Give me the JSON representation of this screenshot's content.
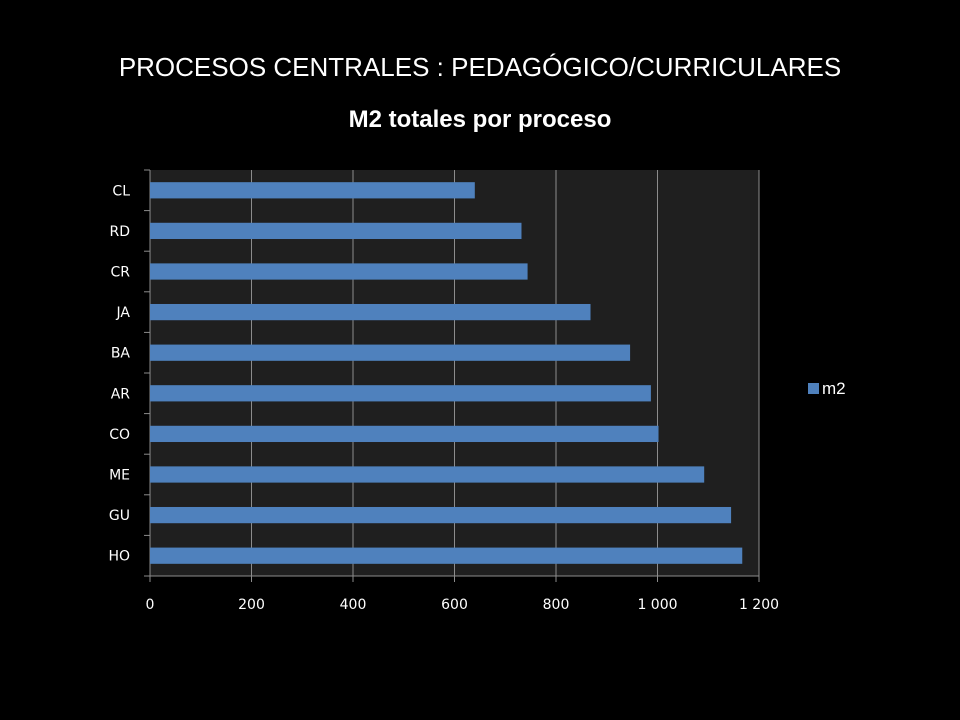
{
  "slide": {
    "title": "PROCESOS CENTRALES : PEDAGÓGICO/CURRICULARES"
  },
  "colors": {
    "background": "#000000",
    "plot_area": "#1f1f1f",
    "bar": "#4f81bd",
    "gridline": "#8c8c8c",
    "text": "#ffffff"
  },
  "chart_data": {
    "type": "bar",
    "orientation": "horizontal",
    "title": "M2 totales por proceso",
    "xlabel": "",
    "ylabel": "",
    "categories": [
      "CL",
      "RD",
      "CR",
      "JA",
      "BA",
      "AR",
      "CO",
      "ME",
      "GU",
      "HO"
    ],
    "series": [
      {
        "name": "m2",
        "values": [
          640,
          732,
          744,
          868,
          946,
          987,
          1002,
          1092,
          1145,
          1167
        ]
      }
    ],
    "xlim": [
      0,
      1200
    ],
    "x_ticks": [
      0,
      200,
      400,
      600,
      800,
      1000,
      1200
    ],
    "x_tick_labels": [
      "0",
      "200",
      "400",
      "600",
      "800",
      "1 000",
      "1 200"
    ],
    "grid": "vertical major gridlines",
    "legend_position": "right"
  }
}
